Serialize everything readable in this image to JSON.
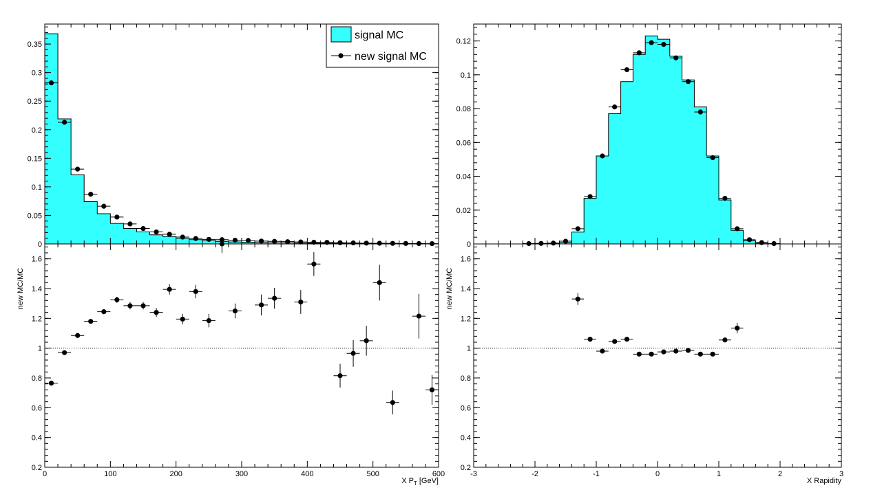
{
  "chart_data": [
    {
      "type": "histogram",
      "panel": "top-left",
      "xlim": [
        0,
        600
      ],
      "ylim": [
        0,
        0.385
      ],
      "xlabel": "",
      "ylabel": "",
      "y_ticks": [
        "0",
        "0.05",
        "0.1",
        "0.15",
        "0.2",
        "0.25",
        "0.3",
        "0.35"
      ],
      "legend_placement": "top-right",
      "series": [
        {
          "name": "signal MC",
          "style": "filled-histogram",
          "color": "#33ffff",
          "bin_edges": [
            0,
            20,
            40,
            60,
            80,
            100,
            120,
            140,
            160,
            180,
            200,
            220,
            240,
            260,
            280,
            300,
            320,
            340,
            360,
            380,
            400,
            420,
            440,
            460,
            480,
            500,
            520,
            540,
            560,
            580,
            600
          ],
          "values": [
            0.368,
            0.219,
            0.121,
            0.074,
            0.053,
            0.036,
            0.027,
            0.021,
            0.016,
            0.013,
            0.01,
            0.0075,
            0.006,
            0.0045,
            0.0035,
            0.003,
            0.0025,
            0.0021,
            0.0018,
            0.0015,
            0.0012,
            0.001,
            0.0008,
            0.0007,
            0.0006,
            0.0005,
            0.0004,
            0.0003,
            0.0002,
            0.0002
          ]
        },
        {
          "name": "new signal MC",
          "style": "markers-with-errors",
          "color": "#000000",
          "x": [
            10,
            30,
            50,
            70,
            90,
            110,
            130,
            150,
            170,
            190,
            210,
            230,
            250,
            270,
            290,
            310,
            330,
            350,
            370,
            390,
            410,
            430,
            450,
            470,
            490,
            510,
            530,
            550,
            570,
            590
          ],
          "y": [
            0.282,
            0.213,
            0.131,
            0.087,
            0.066,
            0.047,
            0.035,
            0.027,
            0.021,
            0.017,
            0.012,
            0.0095,
            0.008,
            0.0075,
            0.0065,
            0.006,
            0.005,
            0.0045,
            0.004,
            0.0035,
            0.003,
            0.0028,
            0.0022,
            0.0018,
            0.0014,
            0.0012,
            0.001,
            0.0008,
            0.0006,
            0.0005
          ],
          "xerr": 10
        }
      ]
    },
    {
      "type": "scatter",
      "panel": "bottom-left",
      "xlim": [
        0,
        600
      ],
      "ylim": [
        0.2,
        1.7
      ],
      "xlabel": "X P_T [GeV]",
      "ylabel": "new MC/MC",
      "x_ticks": [
        "0",
        "100",
        "200",
        "300",
        "400",
        "500",
        "600"
      ],
      "y_ticks": [
        "0.2",
        "0.4",
        "0.6",
        "0.8",
        "1",
        "1.2",
        "1.4",
        "1.6"
      ],
      "reference_line": 1,
      "series": [
        {
          "name": "ratio",
          "x": [
            10,
            30,
            50,
            70,
            90,
            110,
            130,
            150,
            170,
            190,
            210,
            230,
            250,
            270,
            290,
            330,
            350,
            390,
            410,
            450,
            470,
            490,
            510,
            530,
            570,
            590
          ],
          "y": [
            0.765,
            0.97,
            1.085,
            1.18,
            1.245,
            1.325,
            1.285,
            1.285,
            1.24,
            1.395,
            1.195,
            1.38,
            1.185,
            1.7,
            1.25,
            1.29,
            1.335,
            1.31,
            1.565,
            0.815,
            0.965,
            1.05,
            1.44,
            0.635,
            1.215,
            0.72
          ],
          "yerr": [
            0.015,
            0.01,
            0.012,
            0.015,
            0.017,
            0.02,
            0.025,
            0.025,
            0.03,
            0.035,
            0.035,
            0.045,
            0.045,
            0.06,
            0.05,
            0.07,
            0.07,
            0.08,
            0.08,
            0.08,
            0.09,
            0.1,
            0.12,
            0.08,
            0.15,
            0.1
          ],
          "xerr": 10
        }
      ]
    },
    {
      "type": "histogram",
      "panel": "top-right",
      "xlim": [
        -3,
        3
      ],
      "ylim": [
        0,
        0.13
      ],
      "xlabel": "",
      "ylabel": "",
      "y_ticks": [
        "0",
        "0.02",
        "0.04",
        "0.06",
        "0.08",
        "0.1",
        "0.12"
      ],
      "series": [
        {
          "name": "signal MC",
          "style": "filled-histogram",
          "color": "#33ffff",
          "bin_edges": [
            -3,
            -2.8,
            -2.6,
            -2.4,
            -2.2,
            -2.0,
            -1.8,
            -1.6,
            -1.4,
            -1.2,
            -1.0,
            -0.8,
            -0.6,
            -0.4,
            -0.2,
            0.0,
            0.2,
            0.4,
            0.6,
            0.8,
            1.0,
            1.2,
            1.4,
            1.6,
            1.8,
            2.0,
            2.2,
            2.4,
            2.6,
            2.8,
            3.0
          ],
          "values": [
            0,
            0,
            0,
            0,
            0,
            0,
            0.0003,
            0.0009,
            0.007,
            0.027,
            0.052,
            0.077,
            0.096,
            0.112,
            0.123,
            0.121,
            0.111,
            0.097,
            0.081,
            0.052,
            0.026,
            0.008,
            0.002,
            0.0005,
            0,
            0,
            0,
            0,
            0,
            0
          ]
        },
        {
          "name": "new signal MC",
          "style": "markers-with-errors",
          "color": "#000000",
          "x": [
            -2.1,
            -1.9,
            -1.7,
            -1.5,
            -1.3,
            -1.1,
            -0.9,
            -0.7,
            -0.5,
            -0.3,
            -0.1,
            0.1,
            0.3,
            0.5,
            0.7,
            0.9,
            1.1,
            1.3,
            1.5,
            1.7,
            1.9
          ],
          "y": [
            0.0002,
            0.0003,
            0.0005,
            0.0016,
            0.009,
            0.028,
            0.052,
            0.081,
            0.103,
            0.113,
            0.119,
            0.118,
            0.11,
            0.096,
            0.078,
            0.051,
            0.027,
            0.009,
            0.0025,
            0.0008,
            0.0002
          ],
          "xerr": 0.1
        }
      ]
    },
    {
      "type": "scatter",
      "panel": "bottom-right",
      "xlim": [
        -3,
        3
      ],
      "ylim": [
        0.2,
        1.7
      ],
      "xlabel": "X Rapidity",
      "ylabel": "new MC/MC",
      "x_ticks": [
        "-3",
        "-2",
        "-1",
        "0",
        "1",
        "2",
        "3"
      ],
      "y_ticks": [
        "0.2",
        "0.4",
        "0.6",
        "0.8",
        "1",
        "1.2",
        "1.4",
        "1.6"
      ],
      "reference_line": 1,
      "series": [
        {
          "name": "ratio",
          "x": [
            -1.3,
            -1.1,
            -0.9,
            -0.7,
            -0.5,
            -0.3,
            -0.1,
            0.1,
            0.3,
            0.5,
            0.7,
            0.9,
            1.1,
            1.3
          ],
          "y": [
            1.33,
            1.06,
            0.98,
            1.045,
            1.06,
            0.96,
            0.96,
            0.975,
            0.98,
            0.985,
            0.96,
            0.96,
            1.055,
            1.135
          ],
          "yerr": [
            0.04,
            0.015,
            0.01,
            0.008,
            0.007,
            0.005,
            0.005,
            0.005,
            0.005,
            0.006,
            0.007,
            0.008,
            0.015,
            0.035
          ],
          "xerr": 0.1
        }
      ]
    }
  ]
}
